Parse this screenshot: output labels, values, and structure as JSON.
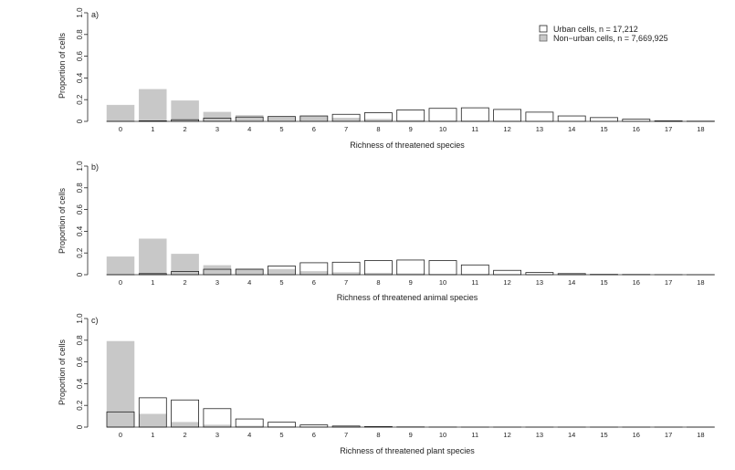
{
  "figure": {
    "legend": {
      "placement": "top-right of panel a",
      "entries": [
        {
          "label": "Urban cells, n = 17,212",
          "fill": "#ffffff",
          "stroke": "#222222"
        },
        {
          "label": "Non−urban cells, n = 7,669,925",
          "fill": "#c8c8c8",
          "stroke": "#666666"
        }
      ]
    }
  },
  "chart_data": [
    {
      "type": "bar",
      "panel_label": "a)",
      "xlabel": "Richness of threatened species",
      "ylabel": "Proportion of cells",
      "ylim": [
        0,
        1
      ],
      "yticks": [
        "0",
        "0.2",
        "0.4",
        "0.6",
        "0.8",
        "1.0"
      ],
      "categories": [
        "0",
        "1",
        "2",
        "3",
        "4",
        "5",
        "6",
        "7",
        "8",
        "9",
        "10",
        "11",
        "12",
        "13",
        "14",
        "15",
        "16",
        "17",
        "18"
      ],
      "grid": false,
      "series": [
        {
          "name": "Urban cells, n = 17,212",
          "color": "#ffffff",
          "values": [
            0.0,
            0.005,
            0.015,
            0.03,
            0.04,
            0.045,
            0.05,
            0.065,
            0.08,
            0.105,
            0.12,
            0.125,
            0.11,
            0.085,
            0.05,
            0.035,
            0.02,
            0.005,
            0.002
          ]
        },
        {
          "name": "Non−urban cells, n = 7,669,925",
          "color": "#c8c8c8",
          "values": [
            0.15,
            0.295,
            0.19,
            0.085,
            0.055,
            0.04,
            0.05,
            0.03,
            0.02,
            0.01,
            0.005,
            0.005,
            0.003,
            0.002,
            0.001,
            0.0,
            0.0,
            0.0,
            0.0
          ]
        }
      ]
    },
    {
      "type": "bar",
      "panel_label": "b)",
      "xlabel": "Richness of threatened animal species",
      "ylabel": "Proportion of cells",
      "ylim": [
        0,
        1
      ],
      "yticks": [
        "0",
        "0.2",
        "0.4",
        "0.6",
        "0.8",
        "1.0"
      ],
      "categories": [
        "0",
        "1",
        "2",
        "3",
        "4",
        "5",
        "6",
        "7",
        "8",
        "9",
        "10",
        "11",
        "12",
        "13",
        "14",
        "15",
        "16",
        "17",
        "18"
      ],
      "grid": false,
      "series": [
        {
          "name": "Urban cells, n = 17,212",
          "color": "#ffffff",
          "values": [
            0.0,
            0.01,
            0.03,
            0.05,
            0.05,
            0.08,
            0.11,
            0.115,
            0.13,
            0.135,
            0.13,
            0.09,
            0.04,
            0.02,
            0.01,
            0.003,
            0.002,
            0.001,
            0.0
          ]
        },
        {
          "name": "Non−urban cells, n = 7,669,925",
          "color": "#c8c8c8",
          "values": [
            0.165,
            0.33,
            0.19,
            0.085,
            0.055,
            0.05,
            0.03,
            0.02,
            0.015,
            0.01,
            0.005,
            0.005,
            0.003,
            0.002,
            0.001,
            0.0,
            0.0,
            0.0,
            0.0
          ]
        }
      ]
    },
    {
      "type": "bar",
      "panel_label": "c)",
      "xlabel": "Richness of threatened plant species",
      "ylabel": "Proportion of cells",
      "ylim": [
        0,
        1
      ],
      "yticks": [
        "0",
        "0.2",
        "0.4",
        "0.6",
        "0.8",
        "1.0"
      ],
      "categories": [
        "0",
        "1",
        "2",
        "3",
        "4",
        "5",
        "6",
        "7",
        "8",
        "9",
        "10",
        "11",
        "12",
        "13",
        "14",
        "15",
        "16",
        "17",
        "18"
      ],
      "grid": false,
      "series": [
        {
          "name": "Urban cells, n = 17,212",
          "color": "#ffffff",
          "values": [
            0.14,
            0.27,
            0.25,
            0.17,
            0.075,
            0.045,
            0.02,
            0.01,
            0.005,
            0.002,
            0.001,
            0.0,
            0.0,
            0.0,
            0.0,
            0.0,
            0.0,
            0.0,
            0.0
          ]
        },
        {
          "name": "Non−urban cells, n = 7,669,925",
          "color": "#c8c8c8",
          "values": [
            0.79,
            0.12,
            0.045,
            0.02,
            0.01,
            0.005,
            0.003,
            0.002,
            0.001,
            0.0,
            0.0,
            0.0,
            0.0,
            0.0,
            0.0,
            0.0,
            0.0,
            0.0,
            0.0
          ]
        }
      ]
    }
  ]
}
